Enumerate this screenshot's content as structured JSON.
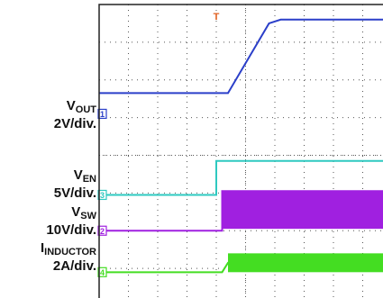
{
  "labels": {
    "vout_main": "V",
    "vout_sub": "OUT",
    "vout_scale": "2V/div.",
    "ven_main": "V",
    "ven_sub": "EN",
    "ven_scale": "5V/div.",
    "vsw_main": "V",
    "vsw_sub": "SW",
    "vsw_scale": "10V/div.",
    "iind_main": "I",
    "iind_sub": "INDUCTOR",
    "iind_scale": "2A/div."
  },
  "chart_data": {
    "type": "line",
    "title": "",
    "xlabel": "",
    "ylabel": "",
    "grid": true,
    "xlim": [
      0,
      10
    ],
    "ylim": [
      0,
      8
    ],
    "trigger_marker": "T",
    "series": [
      {
        "name": "VOUT",
        "color": "#2b3fc9",
        "scale": "2V/div.",
        "x": [
          0,
          4.4,
          5.8,
          6.2,
          10
        ],
        "y": [
          5.65,
          5.65,
          7.5,
          7.6,
          7.6
        ]
      },
      {
        "name": "VEN",
        "color": "#2ec9c0",
        "scale": "5V/div.",
        "x": [
          0,
          4.0,
          4.0,
          10
        ],
        "y": [
          2.95,
          2.95,
          3.85,
          3.85
        ]
      },
      {
        "name": "VSW",
        "color": "#a020e0",
        "scale": "10V/div.",
        "x": [
          0,
          4.2,
          4.2,
          10
        ],
        "y": [
          2.0,
          2.0,
          3.05,
          3.05
        ],
        "band_low": 2.05
      },
      {
        "name": "IINDUCTOR",
        "color": "#44dd22",
        "scale": "2A/div.",
        "x": [
          0,
          4.2,
          4.4,
          10
        ],
        "y": [
          0.9,
          0.9,
          1.15,
          1.15
        ],
        "band_half": 0.25
      }
    ],
    "markers": [
      {
        "name": "VOUT",
        "level": 5.1,
        "label": "1"
      },
      {
        "name": "VEN",
        "level": 2.95,
        "label": "3"
      },
      {
        "name": "VSW",
        "level": 2.0,
        "label": "2"
      },
      {
        "name": "IINDUCTOR",
        "level": 0.9,
        "label": "4"
      }
    ]
  }
}
